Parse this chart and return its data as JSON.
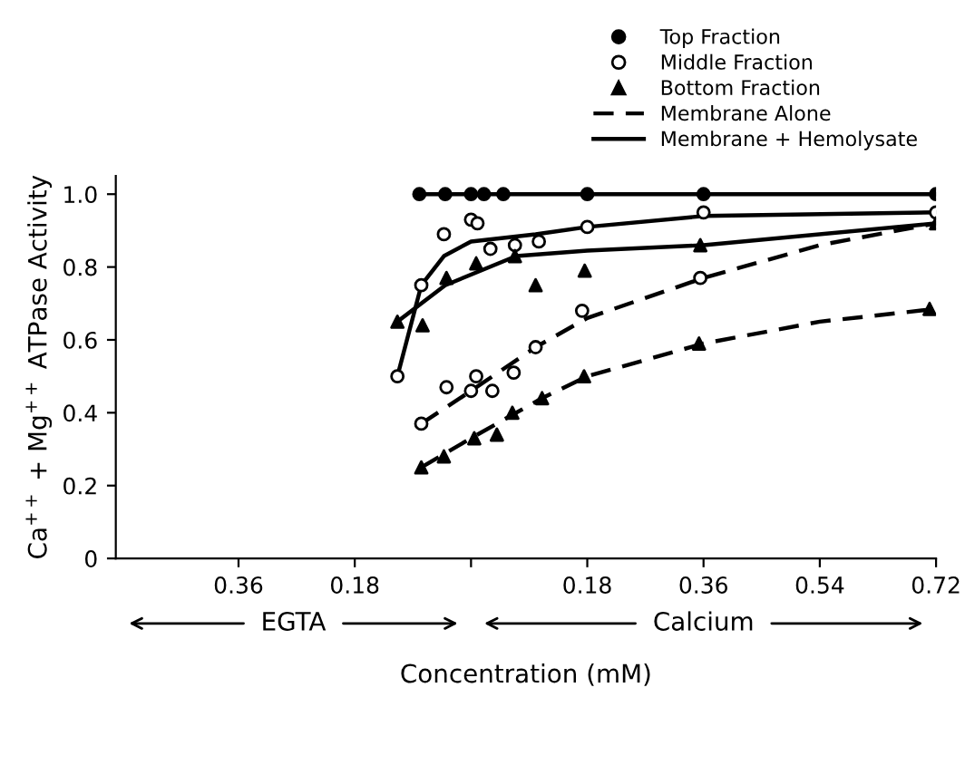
{
  "chart_data": {
    "type": "scatter",
    "xlabel": "Concentration (mM)",
    "ylabel": "Ca$^{++}$ + Mg$^{++}$ ATPase Activity",
    "annotations": [
      "EGTA",
      "Calcium"
    ],
    "xlim": [
      -0.55,
      0.72
    ],
    "xticks": [
      {
        "value": -0.36,
        "label": "0.36"
      },
      {
        "value": -0.18,
        "label": "0.18"
      },
      {
        "value": 0,
        "label": null
      },
      0.18,
      0.36,
      0.54,
      0.72
    ],
    "ylim": [
      0,
      1.05
    ],
    "yticks": [
      0,
      0.2,
      0.4,
      0.6,
      0.8,
      {
        "value": 1.0,
        "label": "1.0"
      }
    ],
    "grid": false,
    "legend": "top right",
    "series": [
      {
        "name": "Top Fraction",
        "marker": "circle",
        "color": "#000000",
        "x": [
          -0.08,
          -0.04,
          0,
          0.02,
          0.05,
          0.18,
          0.36,
          0.72
        ],
        "values": [
          1,
          1,
          1,
          1,
          1,
          1,
          1,
          1
        ]
      },
      {
        "name": "Middle Fraction",
        "marker": "circle",
        "color": "#ffffff",
        "x": [
          -0.114,
          -0.077,
          -0.042,
          0.0,
          0.01,
          0.03,
          0.068,
          0.105,
          0.18,
          0.36,
          0.72,
          -0.077,
          -0.038,
          0.008,
          0.0,
          0.033,
          0.066,
          0.1,
          0.172,
          0.355
        ],
        "values": [
          0.5,
          0.75,
          0.89,
          0.93,
          0.92,
          0.85,
          0.86,
          0.87,
          0.91,
          0.95,
          0.95,
          0.37,
          0.47,
          0.5,
          0.46,
          0.46,
          0.51,
          0.58,
          0.68,
          0.77
        ]
      },
      {
        "name": "Bottom Fraction",
        "marker": "triangle",
        "color": "#000000",
        "x": [
          -0.114,
          -0.075,
          -0.038,
          0.008,
          0.068,
          0.1,
          0.176,
          0.355,
          0.72,
          -0.077,
          -0.042,
          0.005,
          0.04,
          0.064,
          0.11,
          0.175,
          0.353,
          0.71
        ],
        "values": [
          0.65,
          0.64,
          0.77,
          0.81,
          0.83,
          0.75,
          0.79,
          0.86,
          0.92,
          0.25,
          0.28,
          0.33,
          0.34,
          0.4,
          0.44,
          0.5,
          0.59,
          0.685
        ]
      },
      {
        "name": "Membrane Alone",
        "type": "line",
        "line_style": "dashed",
        "color": "#000000",
        "x": [
          -0.077,
          0.0,
          0.1,
          0.18,
          0.36,
          0.54,
          0.72
        ],
        "values": [
          0.37,
          0.46,
          0.58,
          0.66,
          0.77,
          0.86,
          0.92
        ]
      },
      {
        "type": "line",
        "line_style": "dashed",
        "color": "#000000",
        "x": [
          -0.077,
          0.0,
          0.11,
          0.18,
          0.36,
          0.54,
          0.72
        ],
        "values": [
          0.25,
          0.33,
          0.44,
          0.5,
          0.59,
          0.65,
          0.685
        ]
      },
      {
        "name": "Membrane + Hemolysate",
        "type": "line",
        "line_style": "solid",
        "color": "#000000",
        "x": [
          -0.114,
          -0.077,
          -0.042,
          0.0,
          0.1,
          0.18,
          0.36,
          0.72
        ],
        "values": [
          0.5,
          0.75,
          0.83,
          0.87,
          0.89,
          0.91,
          0.94,
          0.95
        ]
      },
      {
        "type": "line",
        "line_style": "solid",
        "color": "#000000",
        "x": [
          -0.114,
          -0.04,
          0.07,
          0.18,
          0.36,
          0.72
        ],
        "values": [
          0.65,
          0.75,
          0.83,
          0.845,
          0.86,
          0.92
        ]
      },
      {
        "type": "line",
        "line_style": "solid",
        "color": "#000000",
        "x": [
          -0.08,
          0.72
        ],
        "values": [
          1,
          1
        ]
      }
    ]
  }
}
